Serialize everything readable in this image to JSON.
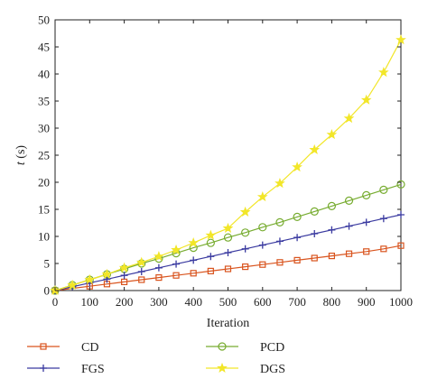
{
  "chart_data": {
    "type": "line",
    "title": "",
    "xlabel": "Iteration",
    "ylabel": "t (s)",
    "xlim": [
      0,
      1000
    ],
    "ylim": [
      0,
      50
    ],
    "xticks": [
      0,
      100,
      200,
      300,
      400,
      500,
      600,
      700,
      800,
      900,
      1000
    ],
    "yticks": [
      0,
      5,
      10,
      15,
      20,
      25,
      30,
      35,
      40,
      45,
      50
    ],
    "grid": false,
    "legend": "bottom, two columns",
    "x": [
      0,
      50,
      100,
      150,
      200,
      250,
      300,
      350,
      400,
      450,
      500,
      550,
      600,
      650,
      700,
      750,
      800,
      850,
      900,
      950,
      1000
    ],
    "series": [
      {
        "name": "CD",
        "color": "#d9541e",
        "marker": "square",
        "marker_x": [
          0,
          100,
          150,
          200,
          250,
          300,
          350,
          400,
          450,
          500,
          550,
          600,
          650,
          700,
          750,
          800,
          850,
          900,
          950,
          1000
        ],
        "values": [
          0,
          0.4,
          0.8,
          1.2,
          1.6,
          2.0,
          2.4,
          2.8,
          3.2,
          3.6,
          4.0,
          4.4,
          4.8,
          5.2,
          5.6,
          6.0,
          6.4,
          6.8,
          7.2,
          7.7,
          8.3
        ]
      },
      {
        "name": "PCD",
        "color": "#77ac30",
        "marker": "circle",
        "marker_x": [
          0,
          50,
          100,
          150,
          200,
          250,
          300,
          350,
          400,
          450,
          500,
          550,
          600,
          650,
          700,
          750,
          800,
          850,
          900,
          950,
          1000
        ],
        "values": [
          0,
          1.0,
          2.0,
          3.0,
          4.0,
          5.0,
          5.9,
          6.9,
          7.9,
          8.8,
          9.8,
          10.7,
          11.7,
          12.6,
          13.6,
          14.6,
          15.6,
          16.6,
          17.6,
          18.6,
          19.6
        ]
      },
      {
        "name": "FGS",
        "color": "#3a3aa0",
        "marker": "plus",
        "marker_x": [
          0,
          50,
          100,
          150,
          200,
          250,
          300,
          350,
          400,
          450,
          500,
          550,
          600,
          650,
          700,
          750,
          800,
          850,
          900,
          950,
          1000
        ],
        "values": [
          0,
          0.7,
          1.4,
          2.1,
          2.8,
          3.5,
          4.2,
          4.9,
          5.6,
          6.3,
          7.0,
          7.7,
          8.4,
          9.1,
          9.8,
          10.5,
          11.2,
          11.9,
          12.6,
          13.3,
          14.0
        ]
      },
      {
        "name": "DGS",
        "color": "#f2e629",
        "marker": "star",
        "marker_x": [
          0,
          50,
          100,
          150,
          200,
          250,
          300,
          350,
          400,
          450,
          500,
          550,
          600,
          650,
          700,
          750,
          800,
          850,
          900,
          950,
          1000
        ],
        "values": [
          0,
          1.0,
          2.0,
          3.0,
          4.2,
          5.2,
          6.3,
          7.5,
          8.8,
          10.2,
          11.5,
          14.5,
          17.3,
          19.8,
          22.8,
          26.0,
          28.8,
          31.8,
          35.2,
          40.3,
          46.3
        ]
      }
    ]
  }
}
